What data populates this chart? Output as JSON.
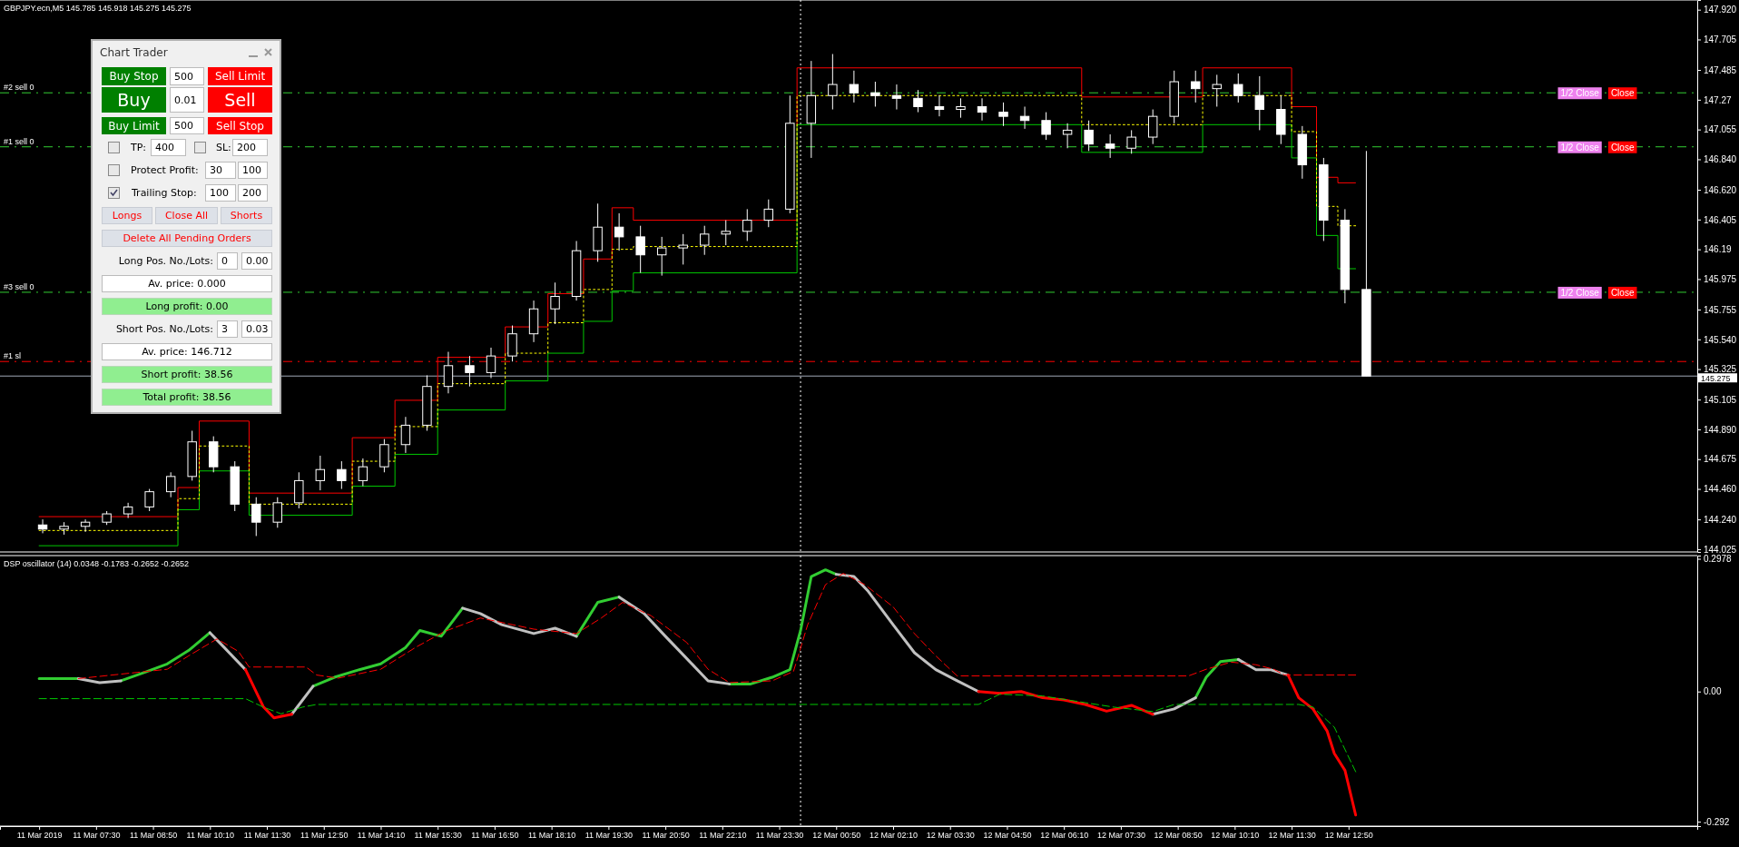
{
  "chart_data": [
    {
      "type": "candlestick",
      "title": "GBPJPY.ecn,M5  145.785 145.918 145.275 145.275",
      "color": "#ffffff",
      "tick_labels": "y",
      "xlim": [
        "2019-03-11T05:15",
        "2019-03-12T21:00"
      ],
      "ylim": [
        144.005,
        147.99
      ],
      "yticks": [
        {
          "value": 147.92,
          "label": "147.920"
        },
        147.705,
        147.485,
        147.27,
        147.055,
        {
          "value": 146.84,
          "label": "146.840"
        },
        {
          "value": 146.62,
          "label": "146.620"
        },
        146.405,
        146.19,
        145.975,
        145.755,
        {
          "value": 145.54,
          "label": "145.540"
        },
        145.325,
        145.105,
        {
          "value": 144.89,
          "label": "144.890"
        },
        144.675,
        {
          "value": 144.46,
          "label": "144.460"
        },
        {
          "value": 144.24,
          "label": "144.240"
        },
        144.025
      ],
      "x": [
        "2019-03-11T06:15",
        "2019-03-11T06:45",
        "2019-03-11T07:15",
        "2019-03-11T07:45",
        "2019-03-11T08:15",
        "2019-03-11T08:45",
        "2019-03-11T09:15",
        "2019-03-11T09:45",
        "2019-03-11T10:15",
        "2019-03-11T10:45",
        "2019-03-11T11:15",
        "2019-03-11T11:45",
        "2019-03-11T12:15",
        "2019-03-11T12:45",
        "2019-03-11T13:15",
        "2019-03-11T13:45",
        "2019-03-11T14:15",
        "2019-03-11T14:45",
        "2019-03-11T15:15",
        "2019-03-11T15:45",
        "2019-03-11T16:15",
        "2019-03-11T16:45",
        "2019-03-11T17:15",
        "2019-03-11T17:45",
        "2019-03-11T18:15",
        "2019-03-11T18:45",
        "2019-03-11T19:15",
        "2019-03-11T19:45",
        "2019-03-11T20:15",
        "2019-03-11T20:45",
        "2019-03-11T21:15",
        "2019-03-11T21:45",
        "2019-03-11T22:15",
        "2019-03-11T22:45",
        "2019-03-11T23:15",
        "2019-03-11T23:45",
        "2019-03-12T00:15",
        "2019-03-12T00:45",
        "2019-03-12T01:15",
        "2019-03-12T01:45",
        "2019-03-12T02:15",
        "2019-03-12T02:45",
        "2019-03-12T03:15",
        "2019-03-12T03:45",
        "2019-03-12T04:15",
        "2019-03-12T04:45",
        "2019-03-12T05:15",
        "2019-03-12T05:45",
        "2019-03-12T06:15",
        "2019-03-12T06:45",
        "2019-03-12T07:15",
        "2019-03-12T07:45",
        "2019-03-12T08:15",
        "2019-03-12T08:45",
        "2019-03-12T09:15",
        "2019-03-12T09:45",
        "2019-03-12T10:15",
        "2019-03-12T10:45",
        "2019-03-12T11:15",
        "2019-03-12T11:45",
        "2019-03-12T12:15",
        "2019-03-12T12:45",
        "2019-03-12T13:15"
      ],
      "ohlc": [
        [
          144.2,
          144.24,
          144.14,
          144.17
        ],
        [
          144.17,
          144.22,
          144.13,
          144.19
        ],
        [
          144.19,
          144.24,
          144.15,
          144.22
        ],
        [
          144.22,
          144.3,
          144.2,
          144.28
        ],
        [
          144.28,
          144.36,
          144.25,
          144.33
        ],
        [
          144.33,
          144.46,
          144.3,
          144.44
        ],
        [
          144.44,
          144.58,
          144.4,
          144.55
        ],
        [
          144.55,
          144.88,
          144.52,
          144.8
        ],
        [
          144.8,
          144.84,
          144.58,
          144.62
        ],
        [
          144.62,
          144.66,
          144.3,
          144.35
        ],
        [
          144.35,
          144.4,
          144.12,
          144.22
        ],
        [
          144.22,
          144.4,
          144.18,
          144.36
        ],
        [
          144.36,
          144.58,
          144.32,
          144.52
        ],
        [
          144.52,
          144.7,
          144.45,
          144.6
        ],
        [
          144.6,
          144.66,
          144.46,
          144.52
        ],
        [
          144.52,
          144.68,
          144.48,
          144.62
        ],
        [
          144.62,
          144.82,
          144.58,
          144.78
        ],
        [
          144.78,
          144.98,
          144.72,
          144.92
        ],
        [
          144.92,
          145.28,
          144.88,
          145.2
        ],
        [
          145.2,
          145.45,
          145.15,
          145.35
        ],
        [
          145.35,
          145.42,
          145.2,
          145.3
        ],
        [
          145.3,
          145.48,
          145.26,
          145.42
        ],
        [
          145.42,
          145.64,
          145.38,
          145.58
        ],
        [
          145.58,
          145.82,
          145.52,
          145.76
        ],
        [
          145.76,
          145.95,
          145.65,
          145.85
        ],
        [
          145.85,
          146.25,
          145.82,
          146.18
        ],
        [
          146.18,
          146.52,
          146.1,
          146.35
        ],
        [
          146.35,
          146.45,
          146.18,
          146.28
        ],
        [
          146.28,
          146.36,
          146.02,
          146.15
        ],
        [
          146.15,
          146.28,
          146.0,
          146.2
        ],
        [
          146.2,
          146.3,
          146.08,
          146.22
        ],
        [
          146.22,
          146.36,
          146.15,
          146.3
        ],
        [
          146.3,
          146.4,
          146.22,
          146.32
        ],
        [
          146.32,
          146.48,
          146.25,
          146.4
        ],
        [
          146.4,
          146.55,
          146.35,
          146.48
        ],
        [
          146.48,
          147.3,
          146.45,
          147.1
        ],
        [
          147.1,
          147.55,
          146.85,
          147.3
        ],
        [
          147.3,
          147.6,
          147.2,
          147.38
        ],
        [
          147.38,
          147.48,
          147.25,
          147.32
        ],
        [
          147.32,
          147.4,
          147.22,
          147.3
        ],
        [
          147.3,
          147.38,
          147.2,
          147.28
        ],
        [
          147.28,
          147.34,
          147.18,
          147.22
        ],
        [
          147.22,
          147.3,
          147.15,
          147.2
        ],
        [
          147.2,
          147.28,
          147.14,
          147.22
        ],
        [
          147.22,
          147.28,
          147.12,
          147.18
        ],
        [
          147.18,
          147.25,
          147.08,
          147.15
        ],
        [
          147.15,
          147.22,
          147.06,
          147.12
        ],
        [
          147.12,
          147.18,
          146.98,
          147.02
        ],
        [
          147.02,
          147.1,
          146.92,
          147.05
        ],
        [
          147.05,
          147.12,
          146.9,
          146.95
        ],
        [
          146.95,
          147.02,
          146.85,
          146.92
        ],
        [
          146.92,
          147.05,
          146.88,
          147.0
        ],
        [
          147.0,
          147.2,
          146.95,
          147.15
        ],
        [
          147.15,
          147.48,
          147.1,
          147.4
        ],
        [
          147.4,
          147.48,
          147.25,
          147.35
        ],
        [
          147.35,
          147.45,
          147.22,
          147.38
        ],
        [
          147.38,
          147.46,
          147.25,
          147.3
        ],
        [
          147.3,
          147.44,
          147.05,
          147.2
        ],
        [
          147.2,
          147.3,
          146.95,
          147.02
        ],
        [
          147.02,
          147.08,
          146.7,
          146.8
        ],
        [
          146.8,
          146.85,
          146.25,
          146.4
        ],
        [
          146.4,
          146.48,
          145.8,
          145.9
        ],
        [
          145.9,
          146.9,
          145.275,
          145.275
        ]
      ],
      "series": [
        {
          "type": "step",
          "color": "#ff0000",
          "line_style": "solid",
          "x": [
            "2019-03-11T06:10",
            "2019-03-11T09:25",
            "2019-03-11T09:55",
            "2019-03-11T11:05",
            "2019-03-11T13:30",
            "2019-03-11T14:30",
            "2019-03-11T15:30",
            "2019-03-11T17:05",
            "2019-03-11T18:05",
            "2019-03-11T18:55",
            "2019-03-11T19:35",
            "2019-03-11T20:05",
            "2019-03-11T23:55",
            "2019-03-12T06:35",
            "2019-03-12T09:25",
            "2019-03-12T11:30",
            "2019-03-12T12:05",
            "2019-03-12T12:35",
            "2019-03-12T13:00"
          ],
          "values": [
            144.26,
            144.47,
            144.95,
            144.43,
            144.83,
            145.1,
            145.41,
            145.63,
            145.87,
            146.12,
            146.49,
            146.4,
            147.5,
            147.29,
            147.5,
            147.22,
            146.71,
            146.67,
            146.67
          ]
        },
        {
          "type": "step",
          "color": "#00c800",
          "line_style": "solid",
          "x": [
            "2019-03-11T06:10",
            "2019-03-11T09:25",
            "2019-03-11T09:55",
            "2019-03-11T11:05",
            "2019-03-11T13:30",
            "2019-03-11T14:30",
            "2019-03-11T15:30",
            "2019-03-11T17:05",
            "2019-03-11T18:05",
            "2019-03-11T18:55",
            "2019-03-11T19:35",
            "2019-03-11T20:05",
            "2019-03-11T23:55",
            "2019-03-12T06:35",
            "2019-03-12T09:25",
            "2019-03-12T11:30",
            "2019-03-12T12:05",
            "2019-03-12T12:35",
            "2019-03-12T13:00"
          ],
          "values": [
            144.05,
            144.31,
            144.59,
            144.27,
            144.48,
            144.71,
            145.03,
            145.24,
            145.44,
            145.67,
            145.89,
            146.02,
            147.09,
            146.89,
            147.09,
            146.85,
            146.29,
            146.05,
            146.05
          ]
        },
        {
          "type": "step",
          "color": "#ffff00",
          "line_style": "dotted",
          "x": [
            "2019-03-11T06:10",
            "2019-03-11T09:25",
            "2019-03-11T09:55",
            "2019-03-11T11:05",
            "2019-03-11T13:30",
            "2019-03-11T14:30",
            "2019-03-11T15:30",
            "2019-03-11T17:05",
            "2019-03-11T18:05",
            "2019-03-11T18:55",
            "2019-03-11T19:35",
            "2019-03-11T20:05",
            "2019-03-11T23:55",
            "2019-03-12T06:35",
            "2019-03-12T09:25",
            "2019-03-12T11:30",
            "2019-03-12T12:05",
            "2019-03-12T12:35",
            "2019-03-12T13:00"
          ],
          "values": [
            144.16,
            144.39,
            144.77,
            144.35,
            144.66,
            144.91,
            145.22,
            145.44,
            145.66,
            145.9,
            146.19,
            146.21,
            147.3,
            147.09,
            147.3,
            147.04,
            146.5,
            146.36,
            146.36
          ]
        }
      ],
      "ref_lines": [
        {
          "axis": "y",
          "value": 147.32,
          "label": "#2 sell 0",
          "color": "#32cd32",
          "line_style": "dashed"
        },
        {
          "axis": "y",
          "value": 146.93,
          "label": "#1 sell 0",
          "color": "#32cd32",
          "line_style": "dashed"
        },
        {
          "axis": "y",
          "value": 145.88,
          "label": "#3 sell 0",
          "color": "#32cd32",
          "line_style": "dashed"
        },
        {
          "axis": "y",
          "value": 145.38,
          "label": "#1 sl",
          "color": "#ff0000",
          "line_style": "dashed"
        },
        {
          "axis": "y",
          "value": 145.275,
          "label": "145.275",
          "color": "#a0a8b8",
          "line_style": "solid"
        },
        {
          "axis": "x",
          "value": "2019-03-12T00:00",
          "color": "#ffffff",
          "line_style": "dotted"
        }
      ],
      "annotations": [
        {
          "text": "1/2 Close",
          "x": "2019-03-12T18:15",
          "y": 147.32
        },
        {
          "text": "Close",
          "x": "2019-03-12T19:15",
          "y": 147.32
        },
        {
          "text": "1/2 Close",
          "x": "2019-03-12T18:15",
          "y": 146.93
        },
        {
          "text": "Close",
          "x": "2019-03-12T19:15",
          "y": 146.93
        },
        {
          "text": "1/2 Close",
          "x": "2019-03-12T18:15",
          "y": 145.88
        },
        {
          "text": "Close",
          "x": "2019-03-12T19:15",
          "y": 145.88
        }
      ]
    },
    {
      "type": "line",
      "title": "DSP oscillator (14) 0.0348 -0.1783 -0.2652 -0.2652",
      "xlim": [
        "2019-03-11T05:15",
        "2019-03-12T21:00"
      ],
      "ylim": [
        -0.302,
        0.305
      ],
      "yticks": [
        0.2978,
        {
          "value": 0,
          "label": "0.00"
        },
        -0.292
      ],
      "xticks": [
        {
          "value": "2019-03-11T06:10",
          "label": "11 Mar 2019"
        },
        {
          "value": "2019-03-11T07:30",
          "label": "11 Mar 07:30"
        },
        {
          "value": "2019-03-11T08:50",
          "label": "11 Mar 08:50"
        },
        {
          "value": "2019-03-11T10:10",
          "label": "11 Mar 10:10"
        },
        {
          "value": "2019-03-11T11:30",
          "label": "11 Mar 11:30"
        },
        {
          "value": "2019-03-11T12:50",
          "label": "11 Mar 12:50"
        },
        {
          "value": "2019-03-11T14:10",
          "label": "11 Mar 14:10"
        },
        {
          "value": "2019-03-11T15:30",
          "label": "11 Mar 15:30"
        },
        {
          "value": "2019-03-11T16:50",
          "label": "11 Mar 16:50"
        },
        {
          "value": "2019-03-11T18:10",
          "label": "11 Mar 18:10"
        },
        {
          "value": "2019-03-11T19:30",
          "label": "11 Mar 19:30"
        },
        {
          "value": "2019-03-11T20:50",
          "label": "11 Mar 20:50"
        },
        {
          "value": "2019-03-11T22:10",
          "label": "11 Mar 22:10"
        },
        {
          "value": "2019-03-11T23:30",
          "label": "11 Mar 23:30"
        },
        {
          "value": "2019-03-12T00:50",
          "label": "12 Mar 00:50"
        },
        {
          "value": "2019-03-12T02:10",
          "label": "12 Mar 02:10"
        },
        {
          "value": "2019-03-12T03:30",
          "label": "12 Mar 03:30"
        },
        {
          "value": "2019-03-12T04:50",
          "label": "12 Mar 04:50"
        },
        {
          "value": "2019-03-12T06:10",
          "label": "12 Mar 06:10"
        },
        {
          "value": "2019-03-12T07:30",
          "label": "12 Mar 07:30"
        },
        {
          "value": "2019-03-12T08:50",
          "label": "12 Mar 08:50"
        },
        {
          "value": "2019-03-12T10:10",
          "label": "12 Mar 10:10"
        },
        {
          "value": "2019-03-12T11:30",
          "label": "12 Mar 11:30"
        },
        {
          "value": "2019-03-12T12:50",
          "label": "12 Mar 12:50"
        }
      ],
      "x": [
        "2019-03-11T06:10",
        "2019-03-11T07:05",
        "2019-03-11T07:35",
        "2019-03-11T08:05",
        "2019-03-11T08:40",
        "2019-03-11T09:10",
        "2019-03-11T09:40",
        "2019-03-11T10:10",
        "2019-03-11T10:30",
        "2019-03-11T11:00",
        "2019-03-11T11:25",
        "2019-03-11T11:40",
        "2019-03-11T12:05",
        "2019-03-11T12:35",
        "2019-03-11T13:05",
        "2019-03-11T13:40",
        "2019-03-11T14:10",
        "2019-03-11T14:45",
        "2019-03-11T15:05",
        "2019-03-11T15:35",
        "2019-03-11T16:05",
        "2019-03-11T16:30",
        "2019-03-11T17:00",
        "2019-03-11T17:45",
        "2019-03-11T18:15",
        "2019-03-11T18:45",
        "2019-03-11T19:15",
        "2019-03-11T19:45",
        "2019-03-11T20:20",
        "2019-03-11T20:50",
        "2019-03-11T21:20",
        "2019-03-11T21:50",
        "2019-03-11T22:20",
        "2019-03-11T22:50",
        "2019-03-11T23:20",
        "2019-03-11T23:45",
        "2019-03-12T00:00",
        "2019-03-12T00:15",
        "2019-03-12T00:35",
        "2019-03-12T00:50",
        "2019-03-12T01:15",
        "2019-03-12T01:35",
        "2019-03-12T02:10",
        "2019-03-12T02:40",
        "2019-03-12T03:10",
        "2019-03-12T03:40",
        "2019-03-12T04:10",
        "2019-03-12T04:40",
        "2019-03-12T05:10",
        "2019-03-12T05:40",
        "2019-03-12T06:10",
        "2019-03-12T06:40",
        "2019-03-12T07:10",
        "2019-03-12T07:45",
        "2019-03-12T08:15",
        "2019-03-12T08:45",
        "2019-03-12T09:15",
        "2019-03-12T09:30",
        "2019-03-12T09:50",
        "2019-03-12T10:15",
        "2019-03-12T10:40",
        "2019-03-12T11:00",
        "2019-03-12T11:25",
        "2019-03-12T11:40",
        "2019-03-12T12:00",
        "2019-03-12T12:20",
        "2019-03-12T12:30",
        "2019-03-12T12:45",
        "2019-03-12T13:00"
      ],
      "series": [
        {
          "type": "line",
          "color": "#32cd32",
          "line_style": "solid",
          "values": [
            0.029,
            0.029,
            null,
            0.024,
            0.044,
            0.062,
            0.092,
            0.132,
            null,
            null,
            null,
            null,
            null,
            0.012,
            0.032,
            0.049,
            0.062,
            0.099,
            0.137,
            0.124,
            0.187,
            null,
            null,
            null,
            null,
            0.124,
            0.2,
            0.212,
            null,
            null,
            null,
            null,
            0.017,
            0.017,
            0.032,
            0.049,
            0.137,
            0.258,
            0.273,
            0.263,
            null,
            null,
            null,
            null,
            null,
            null,
            null,
            null,
            null,
            null,
            null,
            null,
            null,
            null,
            null,
            null,
            -0.014,
            0.032,
            0.067,
            0.072,
            null,
            null,
            null,
            null,
            null,
            null,
            null,
            null,
            null
          ]
        },
        {
          "type": "line",
          "color": "#c0c0c0",
          "line_style": "solid",
          "values": [
            null,
            0.029,
            0.02,
            0.024,
            null,
            null,
            null,
            0.132,
            0.099,
            0.049,
            null,
            null,
            -0.051,
            0.012,
            null,
            null,
            null,
            null,
            null,
            null,
            0.187,
            0.175,
            0.15,
            0.13,
            0.142,
            0.124,
            null,
            0.212,
            0.175,
            0.124,
            0.074,
            0.024,
            0.017,
            null,
            null,
            null,
            null,
            null,
            null,
            0.263,
            0.258,
            0.225,
            0.15,
            0.087,
            0.049,
            0.024,
            0,
            null,
            null,
            null,
            null,
            null,
            null,
            null,
            -0.051,
            -0.039,
            -0.014,
            null,
            null,
            0.072,
            0.049,
            0.049,
            0.037,
            null,
            null,
            null,
            null,
            null,
            null
          ]
        },
        {
          "type": "line",
          "color": "#ff0000",
          "line_style": "solid",
          "values": [
            null,
            null,
            null,
            null,
            null,
            null,
            null,
            null,
            null,
            0.049,
            -0.034,
            -0.059,
            -0.051,
            null,
            null,
            null,
            null,
            null,
            null,
            null,
            null,
            null,
            null,
            null,
            null,
            null,
            null,
            null,
            null,
            null,
            null,
            null,
            null,
            null,
            null,
            null,
            null,
            null,
            null,
            null,
            null,
            null,
            null,
            null,
            null,
            null,
            0,
            -0.004,
            0,
            -0.014,
            -0.019,
            -0.029,
            -0.044,
            -0.031,
            -0.051,
            null,
            null,
            null,
            null,
            null,
            null,
            null,
            0.037,
            -0.014,
            -0.039,
            -0.089,
            -0.139,
            -0.177,
            -0.277
          ]
        },
        {
          "type": "line",
          "color": "#ff0000",
          "line_style": "dashed",
          "x": [
            "2019-03-11T07:05",
            "2019-03-11T09:10",
            "2019-03-11T09:40",
            "2019-03-11T10:20",
            "2019-03-11T10:50",
            "2019-03-11T11:05",
            "2019-03-11T12:25",
            "2019-03-11T12:40",
            "2019-03-11T13:10",
            "2019-03-11T14:10",
            "2019-03-11T15:00",
            "2019-03-11T15:40",
            "2019-03-11T16:30",
            "2019-03-11T17:45",
            "2019-03-11T18:45",
            "2019-03-11T19:20",
            "2019-03-11T19:50",
            "2019-03-11T20:30",
            "2019-03-11T21:20",
            "2019-03-11T21:50",
            "2019-03-11T22:20",
            "2019-03-11T23:20",
            "2019-03-11T23:50",
            "2019-03-12T00:10",
            "2019-03-12T00:35",
            "2019-03-12T01:00",
            "2019-03-12T01:30",
            "2019-03-12T02:10",
            "2019-03-12T02:40",
            "2019-03-12T03:10",
            "2019-03-12T03:40",
            "2019-03-12T09:05",
            "2019-03-12T09:30",
            "2019-03-12T10:05",
            "2019-03-12T10:40",
            "2019-03-12T11:05",
            "2019-03-12T11:20",
            "2019-03-12T13:00"
          ],
          "values": [
            0.029,
            0.05,
            0.08,
            0.118,
            0.09,
            0.055,
            0.055,
            0.037,
            0.03,
            0.05,
            0.1,
            0.135,
            0.165,
            0.14,
            0.13,
            0.165,
            0.2,
            0.17,
            0.11,
            0.05,
            0.02,
            0.024,
            0.045,
            0.15,
            0.24,
            0.265,
            0.24,
            0.19,
            0.13,
            0.08,
            0.035,
            0.035,
            0.05,
            0.066,
            0.06,
            0.05,
            0.037,
            0.037
          ]
        },
        {
          "type": "line",
          "color": "#00c800",
          "line_style": "dashed",
          "x": [
            "2019-03-11T06:10",
            "2019-03-11T11:00",
            "2019-03-11T11:25",
            "2019-03-11T11:50",
            "2019-03-11T12:20",
            "2019-03-11T12:40",
            "2019-03-12T04:10",
            "2019-03-12T04:40",
            "2019-03-12T05:40",
            "2019-03-12T06:40",
            "2019-03-12T07:20",
            "2019-03-12T08:15",
            "2019-03-12T08:45",
            "2019-03-12T11:40",
            "2019-03-12T12:00",
            "2019-03-12T12:30",
            "2019-03-12T13:00"
          ],
          "values": [
            -0.016,
            -0.016,
            -0.035,
            -0.05,
            -0.035,
            -0.029,
            -0.029,
            -0.006,
            -0.01,
            -0.025,
            -0.035,
            -0.045,
            -0.029,
            -0.029,
            -0.035,
            -0.08,
            -0.18
          ]
        }
      ],
      "ref_lines": [
        {
          "axis": "x",
          "value": "2019-03-12T00:00",
          "color": "#ffffff",
          "line_style": "dotted"
        }
      ]
    },
    {
      "type": "other",
      "title": "Chart Trader",
      "annotations": [
        "Buy Stop",
        "500",
        "Sell Limit",
        "Buy",
        "0.01",
        "Sell",
        "Buy Limit",
        "500",
        "Sell Stop",
        "TP:",
        "400",
        "SL:",
        "200",
        "Protect Profit:",
        "30",
        "100",
        "Trailing Stop:",
        "100",
        "200",
        "Longs",
        "Close All",
        "Shorts",
        "Delete All Pending Orders",
        "Long Pos. No./Lots:",
        "0",
        "0.00",
        "Av. price: 0.000",
        "Long profit: 0.00",
        "Short Pos. No./Lots:",
        "3",
        "0.03",
        "Av. price: 146.712",
        "Short profit: 38.56",
        "Total profit: 38.56"
      ]
    }
  ]
}
